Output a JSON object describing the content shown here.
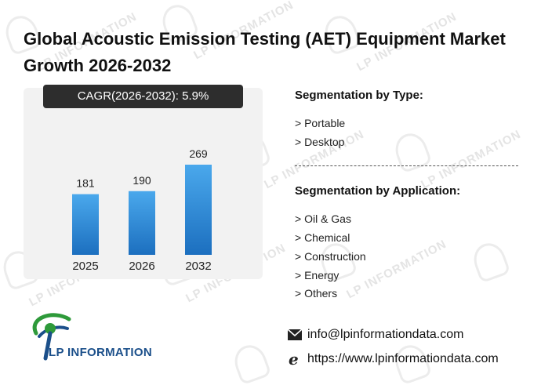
{
  "title": "Global Acoustic Emission Testing (AET) Equipment Market Growth 2026-2032",
  "cagr_label": "CAGR(2026-2032):  5.9%",
  "chart_data": {
    "type": "bar",
    "categories": [
      "2025",
      "2026",
      "2032"
    ],
    "values": [
      181,
      190,
      269
    ],
    "ylim": [
      0,
      300
    ],
    "grid": false,
    "legend": "none",
    "colors": {
      "bar_top": "#4aa8ec",
      "bar_bottom": "#1c6fbf",
      "panel": "#f2f2f2"
    }
  },
  "segmentation_type": {
    "heading": "Segmentation by Type:",
    "items": [
      "> Portable",
      "> Desktop"
    ]
  },
  "segmentation_application": {
    "heading": "Segmentation by Application:",
    "items": [
      "> Oil & Gas",
      "> Chemical",
      "> Construction",
      "> Energy",
      "> Others"
    ]
  },
  "brand": {
    "name": "LP INFORMATION",
    "watermark": "LP INFORMATION"
  },
  "contact": {
    "email": "info@lpinformationdata.com",
    "website": "https://www.lpinformationdata.com",
    "email_icon": "envelope-icon",
    "web_icon": "browser-e-icon"
  }
}
